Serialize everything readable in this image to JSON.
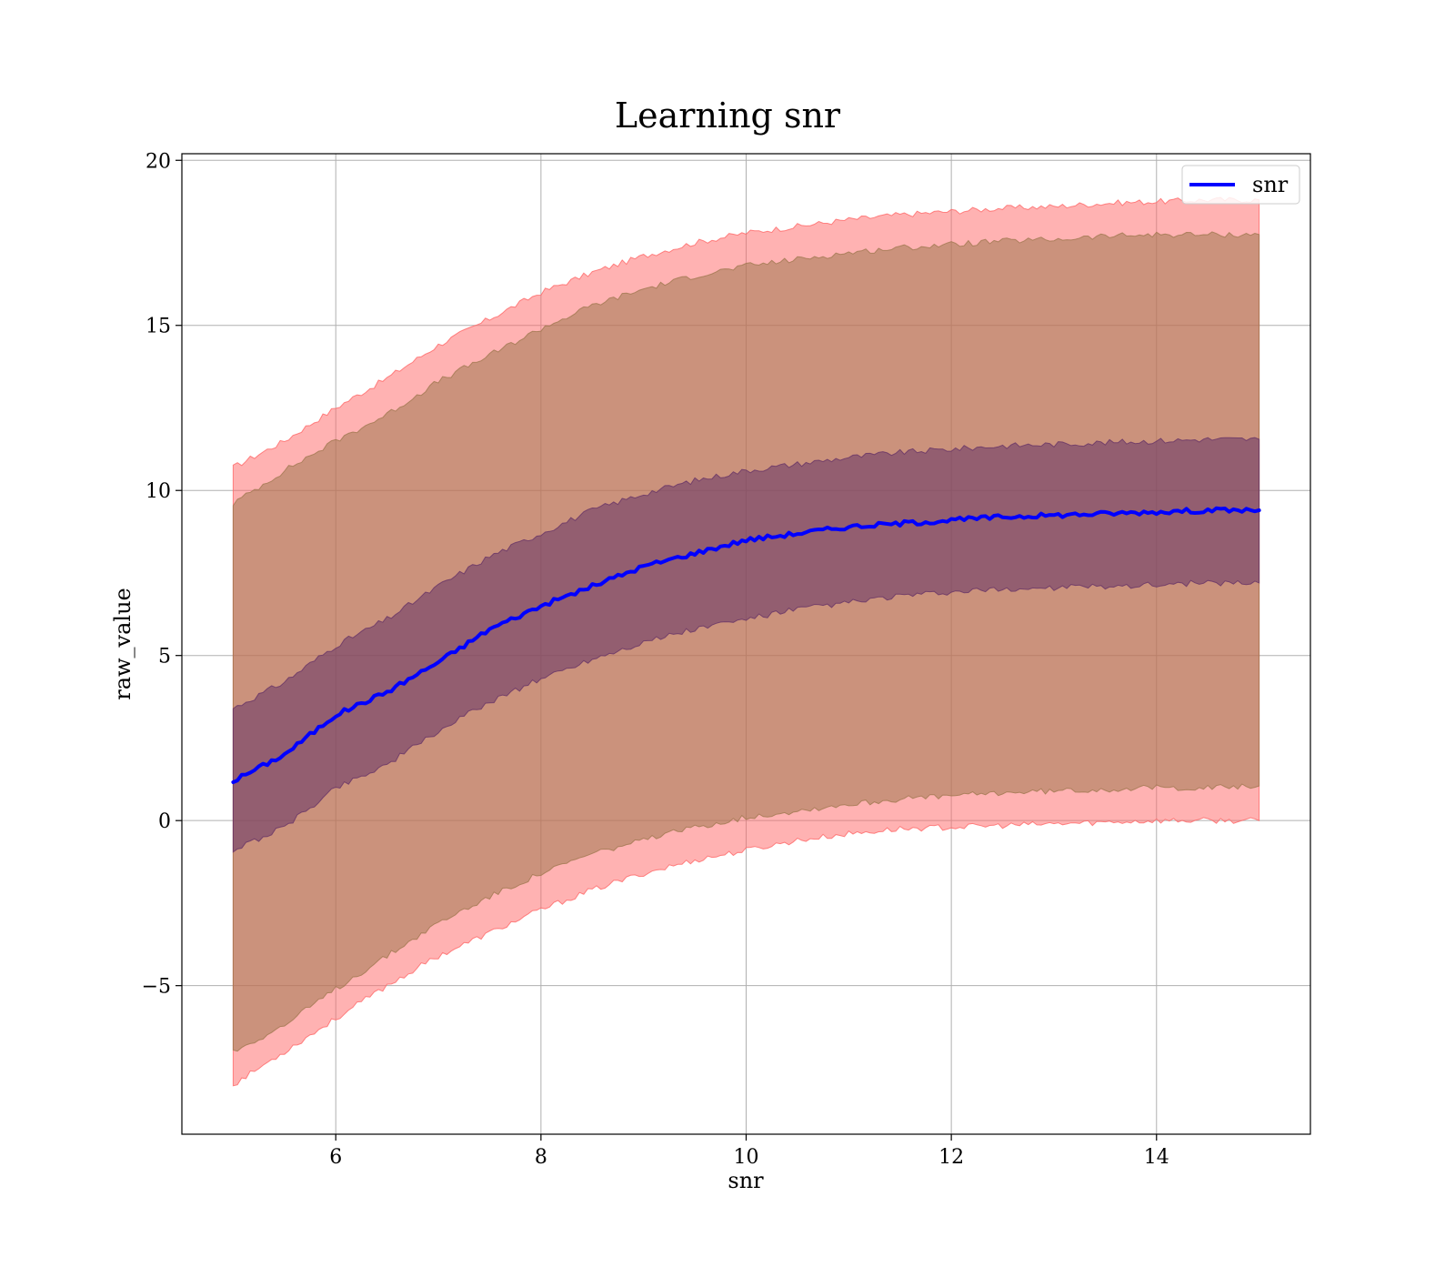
{
  "chart_data": {
    "type": "line",
    "title": "Learning snr",
    "xlabel": "snr",
    "ylabel": "raw_value",
    "xlim": [
      4.5,
      15.5
    ],
    "ylim": [
      -9.5,
      20.2
    ],
    "xticks": [
      6,
      8,
      10,
      12,
      14
    ],
    "xtick_labels": [
      "6",
      "8",
      "10",
      "12",
      "14"
    ],
    "yticks": [
      -5,
      0,
      5,
      10,
      15,
      20
    ],
    "ytick_labels": [
      "−5",
      "0",
      "5",
      "10",
      "15",
      "20"
    ],
    "grid": true,
    "legend": {
      "position": "top-right",
      "entries": [
        "snr"
      ]
    },
    "x": [
      5,
      5.5,
      6,
      6.5,
      7,
      7.5,
      8,
      8.5,
      9,
      9.5,
      10,
      10.5,
      11,
      11.5,
      12,
      12.5,
      13,
      13.5,
      14,
      14.5,
      15
    ],
    "series": [
      {
        "name": "snr",
        "color": "#0000ff",
        "values": [
          1.2,
          2.0,
          3.2,
          3.9,
          4.8,
          5.8,
          6.5,
          7.1,
          7.7,
          8.1,
          8.5,
          8.7,
          8.9,
          9.0,
          9.1,
          9.2,
          9.25,
          9.3,
          9.35,
          9.4,
          9.4
        ]
      }
    ],
    "bands": [
      {
        "role": "outer",
        "color": "#ff6666",
        "lower": [
          -8.0,
          -7.0,
          -6.0,
          -5.0,
          -4.1,
          -3.4,
          -2.7,
          -2.1,
          -1.6,
          -1.2,
          -0.9,
          -0.6,
          -0.4,
          -0.25,
          -0.2,
          -0.15,
          -0.1,
          -0.05,
          0.0,
          0.0,
          0.0
        ],
        "upper": [
          10.7,
          11.5,
          12.5,
          13.4,
          14.4,
          15.2,
          16.0,
          16.6,
          17.1,
          17.5,
          17.8,
          18.0,
          18.2,
          18.35,
          18.45,
          18.55,
          18.6,
          18.7,
          18.75,
          18.8,
          18.8
        ]
      },
      {
        "role": "middle",
        "color": "#a07850",
        "lower": [
          -7.0,
          -6.2,
          -5.1,
          -4.1,
          -3.1,
          -2.3,
          -1.6,
          -1.0,
          -0.6,
          -0.2,
          0.1,
          0.3,
          0.5,
          0.65,
          0.75,
          0.85,
          0.9,
          0.95,
          1.0,
          1.0,
          1.05
        ],
        "upper": [
          9.6,
          10.6,
          11.5,
          12.3,
          13.3,
          14.1,
          14.9,
          15.6,
          16.1,
          16.5,
          16.8,
          17.0,
          17.2,
          17.35,
          17.45,
          17.55,
          17.6,
          17.7,
          17.75,
          17.75,
          17.75
        ]
      },
      {
        "role": "inner",
        "color": "#663366",
        "lower": [
          -0.9,
          -0.2,
          1.0,
          1.7,
          2.7,
          3.6,
          4.3,
          4.9,
          5.4,
          5.8,
          6.1,
          6.4,
          6.6,
          6.8,
          6.9,
          7.0,
          7.05,
          7.1,
          7.15,
          7.2,
          7.2
        ],
        "upper": [
          3.4,
          4.2,
          5.3,
          6.1,
          7.1,
          8.0,
          8.7,
          9.4,
          9.9,
          10.3,
          10.6,
          10.8,
          11.0,
          11.15,
          11.25,
          11.35,
          11.4,
          11.45,
          11.5,
          11.55,
          11.55
        ]
      }
    ]
  }
}
